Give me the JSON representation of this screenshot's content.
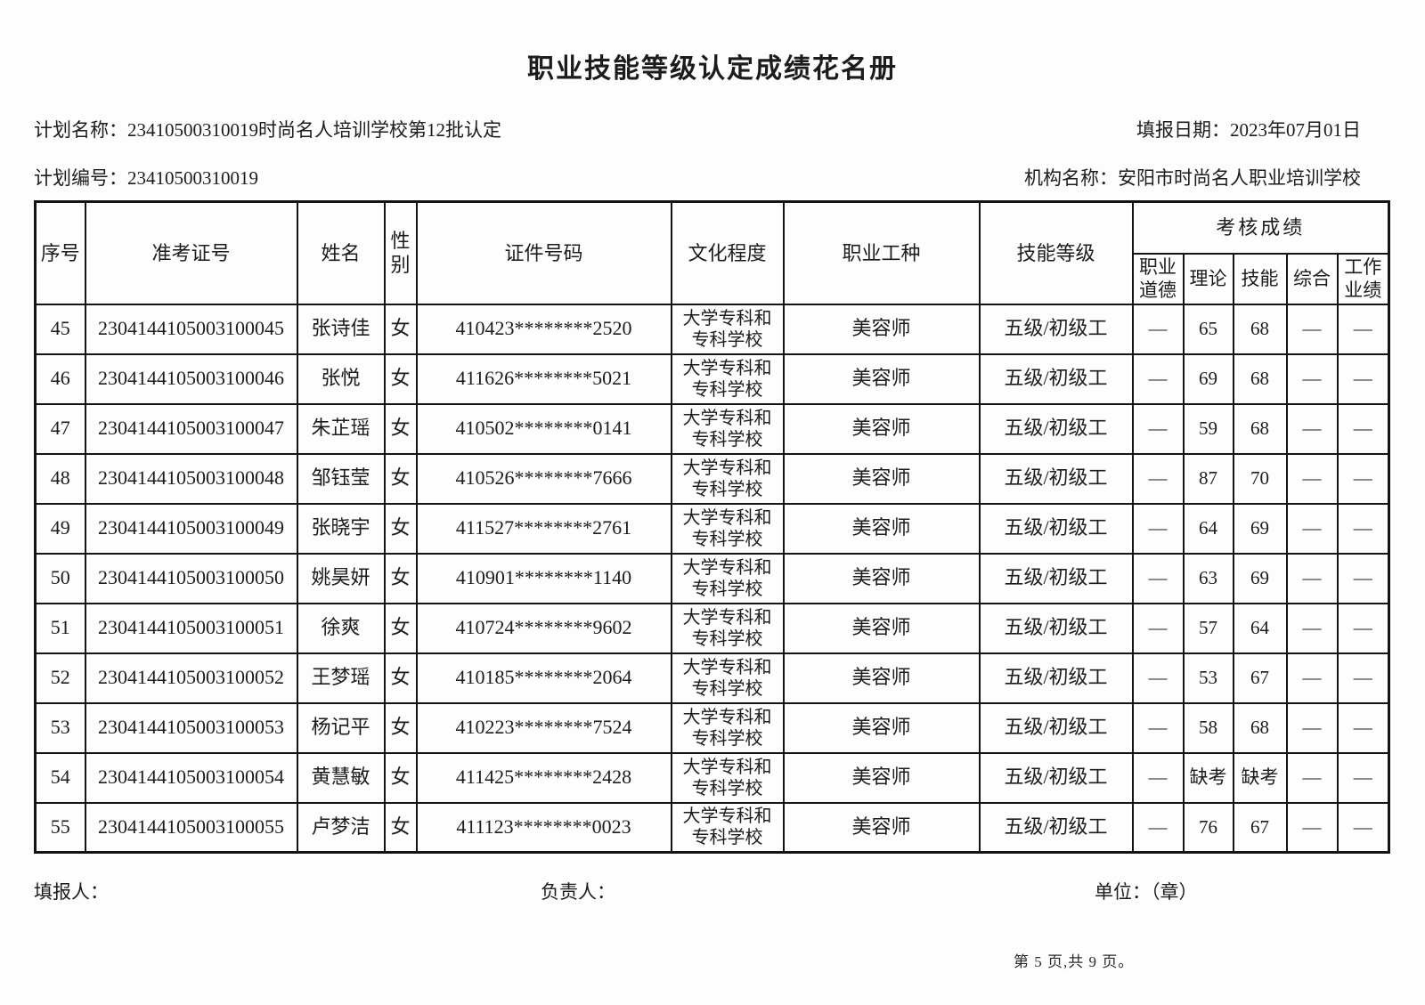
{
  "doc": {
    "title": "职业技能等级认定成绩花名册",
    "meta": {
      "plan_name": "计划名称：23410500310019时尚名人培训学校第12批认定",
      "report_date": "填报日期：2023年07月01日",
      "plan_no": "计划编号：23410500310019",
      "org_name": "机构名称：安阳市时尚名人职业培训学校"
    }
  },
  "table": {
    "headers": {
      "seq": "序号",
      "ticket": "准考证号",
      "name": "姓名",
      "gender": "性别",
      "id_no": "证件号码",
      "education": "文化程度",
      "occupation": "职业工种",
      "level": "技能等级",
      "score_group": "考核成绩",
      "score_cols": [
        "职业道德",
        "理论",
        "技能",
        "综合",
        "工作业绩"
      ]
    },
    "rows": [
      {
        "seq": "45",
        "ticket": "2304144105003100045",
        "name": "张诗佳",
        "gender": "女",
        "id_no": "410423********2520",
        "education": "大学专科和专科学校",
        "occupation": "美容师",
        "level": "五级/初级工",
        "scores": [
          "—",
          "65",
          "68",
          "—",
          "—"
        ]
      },
      {
        "seq": "46",
        "ticket": "2304144105003100046",
        "name": "张悦",
        "gender": "女",
        "id_no": "411626********5021",
        "education": "大学专科和专科学校",
        "occupation": "美容师",
        "level": "五级/初级工",
        "scores": [
          "—",
          "69",
          "68",
          "—",
          "—"
        ]
      },
      {
        "seq": "47",
        "ticket": "2304144105003100047",
        "name": "朱芷瑶",
        "gender": "女",
        "id_no": "410502********0141",
        "education": "大学专科和专科学校",
        "occupation": "美容师",
        "level": "五级/初级工",
        "scores": [
          "—",
          "59",
          "68",
          "—",
          "—"
        ]
      },
      {
        "seq": "48",
        "ticket": "2304144105003100048",
        "name": "邹钰莹",
        "gender": "女",
        "id_no": "410526********7666",
        "education": "大学专科和专科学校",
        "occupation": "美容师",
        "level": "五级/初级工",
        "scores": [
          "—",
          "87",
          "70",
          "—",
          "—"
        ]
      },
      {
        "seq": "49",
        "ticket": "2304144105003100049",
        "name": "张晓宇",
        "gender": "女",
        "id_no": "411527********2761",
        "education": "大学专科和专科学校",
        "occupation": "美容师",
        "level": "五级/初级工",
        "scores": [
          "—",
          "64",
          "69",
          "—",
          "—"
        ]
      },
      {
        "seq": "50",
        "ticket": "2304144105003100050",
        "name": "姚昊妍",
        "gender": "女",
        "id_no": "410901********1140",
        "education": "大学专科和专科学校",
        "occupation": "美容师",
        "level": "五级/初级工",
        "scores": [
          "—",
          "63",
          "69",
          "—",
          "—"
        ]
      },
      {
        "seq": "51",
        "ticket": "2304144105003100051",
        "name": "徐爽",
        "gender": "女",
        "id_no": "410724********9602",
        "education": "大学专科和专科学校",
        "occupation": "美容师",
        "level": "五级/初级工",
        "scores": [
          "—",
          "57",
          "64",
          "—",
          "—"
        ]
      },
      {
        "seq": "52",
        "ticket": "2304144105003100052",
        "name": "王梦瑶",
        "gender": "女",
        "id_no": "410185********2064",
        "education": "大学专科和专科学校",
        "occupation": "美容师",
        "level": "五级/初级工",
        "scores": [
          "—",
          "53",
          "67",
          "—",
          "—"
        ]
      },
      {
        "seq": "53",
        "ticket": "2304144105003100053",
        "name": "杨记平",
        "gender": "女",
        "id_no": "410223********7524",
        "education": "大学专科和专科学校",
        "occupation": "美容师",
        "level": "五级/初级工",
        "scores": [
          "—",
          "58",
          "68",
          "—",
          "—"
        ]
      },
      {
        "seq": "54",
        "ticket": "2304144105003100054",
        "name": "黄慧敏",
        "gender": "女",
        "id_no": "411425********2428",
        "education": "大学专科和专科学校",
        "occupation": "美容师",
        "level": "五级/初级工",
        "scores": [
          "—",
          "缺考",
          "缺考",
          "—",
          "—"
        ]
      },
      {
        "seq": "55",
        "ticket": "2304144105003100055",
        "name": "卢梦洁",
        "gender": "女",
        "id_no": "411123********0023",
        "education": "大学专科和专科学校",
        "occupation": "美容师",
        "level": "五级/初级工",
        "scores": [
          "—",
          "76",
          "67",
          "—",
          "—"
        ]
      }
    ]
  },
  "footer": {
    "filler_label": "填报人：",
    "manager_label": "负责人：",
    "unit_label": "单位：（章）",
    "page_info": "第 5 页,共 9 页。"
  }
}
